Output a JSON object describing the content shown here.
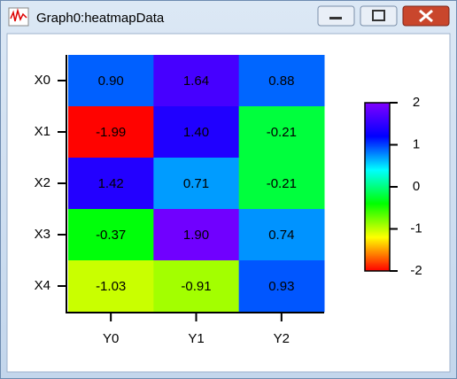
{
  "window": {
    "title": "Graph0:heatmapData"
  },
  "chart_data": {
    "type": "heatmap",
    "x_categories": [
      "Y0",
      "Y1",
      "Y2"
    ],
    "y_categories": [
      "X0",
      "X1",
      "X2",
      "X3",
      "X4"
    ],
    "values": [
      [
        0.9,
        1.64,
        0.88
      ],
      [
        -1.99,
        1.4,
        -0.21
      ],
      [
        1.42,
        0.71,
        -0.21
      ],
      [
        -0.37,
        1.9,
        0.74
      ],
      [
        -1.03,
        -0.91,
        0.93
      ]
    ],
    "value_labels": [
      [
        "0.90",
        "1.64",
        "0.88"
      ],
      [
        "-1.99",
        "1.40",
        "-0.21"
      ],
      [
        "1.42",
        "0.71",
        "-0.21"
      ],
      [
        "-0.37",
        "1.90",
        "0.74"
      ],
      [
        "-1.03",
        "-0.91",
        "0.93"
      ]
    ],
    "colorscale": [
      "#ff0000",
      "#ffff00",
      "#00ff00",
      "#00ffff",
      "#0000ff",
      "#8000ff"
    ],
    "zlim": [
      -2,
      2
    ],
    "zticks": [
      2,
      1,
      0,
      -1,
      -2
    ]
  }
}
